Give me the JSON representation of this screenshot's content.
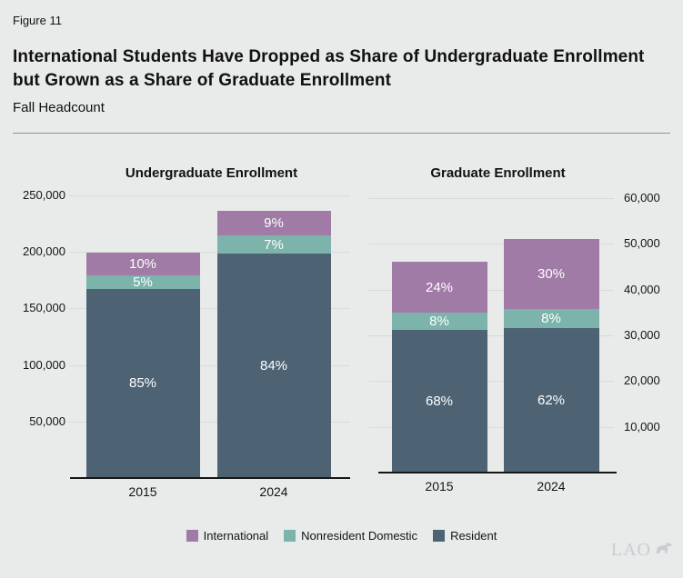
{
  "header": {
    "figure_label": "Figure 11",
    "title": "International Students Have Dropped as Share of Undergraduate Enrollment but Grown as a Share of Graduate Enrollment",
    "subtitle": "Fall Headcount"
  },
  "colors": {
    "background": "#e9eaea",
    "gridline": "#d9dbdb",
    "axis_line": "#161616",
    "international": "#a07ba6",
    "nonresident_domestic": "#7cb4ab",
    "resident": "#4d6374",
    "bar_label_text": "#ffffff",
    "logo": "#c9cdd2"
  },
  "chart_data": [
    {
      "type": "bar",
      "stacked": true,
      "title": "Undergraduate Enrollment",
      "categories": [
        "2015",
        "2024"
      ],
      "totals": [
        199000,
        236000
      ],
      "series": [
        {
          "name": "Resident",
          "color": "#4d6374",
          "pct": [
            85,
            84
          ]
        },
        {
          "name": "Nonresident Domestic",
          "color": "#7cb4ab",
          "pct": [
            5,
            7
          ]
        },
        {
          "name": "International",
          "color": "#a07ba6",
          "pct": [
            10,
            9
          ]
        }
      ],
      "y_axis": {
        "side": "left",
        "min": 0,
        "max": 250000,
        "tick_step": 50000,
        "tick_labels": [
          "50,000",
          "100,000",
          "150,000",
          "200,000",
          "250,000"
        ]
      },
      "grid": true,
      "note": "series listed bottom-to-top; segment labels show percent share"
    },
    {
      "type": "bar",
      "stacked": true,
      "title": "Graduate Enrollment",
      "categories": [
        "2015",
        "2024"
      ],
      "totals": [
        46000,
        51000
      ],
      "series": [
        {
          "name": "Resident",
          "color": "#4d6374",
          "pct": [
            68,
            62
          ]
        },
        {
          "name": "Nonresident Domestic",
          "color": "#7cb4ab",
          "pct": [
            8,
            8
          ]
        },
        {
          "name": "International",
          "color": "#a07ba6",
          "pct": [
            24,
            30
          ]
        }
      ],
      "y_axis": {
        "side": "right",
        "min": 0,
        "max": 60000,
        "tick_step": 10000,
        "tick_labels": [
          "10,000",
          "20,000",
          "30,000",
          "40,000",
          "50,000",
          "60,000"
        ]
      },
      "grid": true,
      "note": "series listed bottom-to-top; segment labels show percent share"
    }
  ],
  "legend": {
    "items": [
      {
        "label": "International",
        "color": "#a07ba6"
      },
      {
        "label": "Nonresident Domestic",
        "color": "#7cb4ab"
      },
      {
        "label": "Resident",
        "color": "#4d6374"
      }
    ]
  },
  "logo": {
    "text": "LAO"
  }
}
